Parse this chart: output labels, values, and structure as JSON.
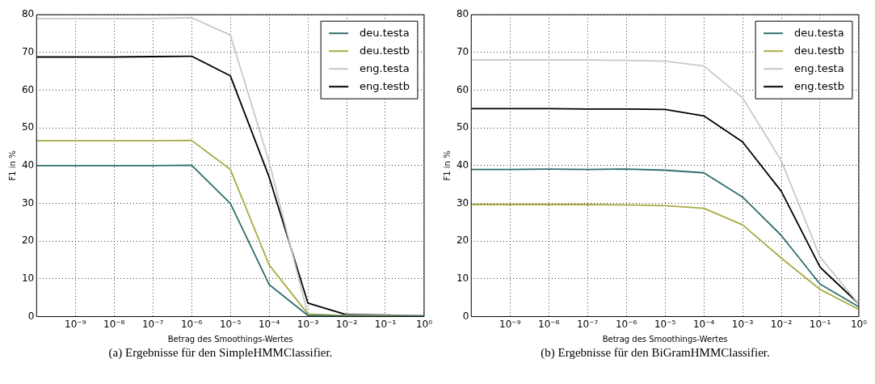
{
  "chart_data": [
    {
      "type": "line",
      "xlabel": "Betrag des Smoothings-Wertes",
      "ylabel": "F1 in %",
      "annotations": [
        "(a) Ergebnisse für den SimpleHMMClassifier."
      ],
      "log": "x",
      "grid": true,
      "legend": "top right",
      "xlim": [
        1e-10,
        1
      ],
      "ylim": [
        0,
        80
      ],
      "xticks": [
        {
          "value": 1e-09,
          "label": "10⁻⁹"
        },
        {
          "value": 1e-08,
          "label": "10⁻⁸"
        },
        {
          "value": 1e-07,
          "label": "10⁻⁷"
        },
        {
          "value": 1e-06,
          "label": "10⁻⁶"
        },
        {
          "value": 1e-05,
          "label": "10⁻⁵"
        },
        {
          "value": 0.0001,
          "label": "10⁻⁴"
        },
        {
          "value": 0.001,
          "label": "10⁻³"
        },
        {
          "value": 0.01,
          "label": "10⁻²"
        },
        {
          "value": 0.1,
          "label": "10⁻¹"
        },
        {
          "value": 1,
          "label": "10⁰"
        }
      ],
      "yticks": [
        0,
        10,
        20,
        30,
        40,
        50,
        60,
        70,
        80
      ],
      "x": [
        1e-10,
        1e-09,
        1e-08,
        1e-07,
        1e-06,
        1e-05,
        0.0001,
        0.001,
        0.01,
        0.1,
        1
      ],
      "series": [
        {
          "name": "deu.testa",
          "color": "#2f6e6e",
          "values": [
            40,
            40,
            40,
            40,
            40.1,
            30,
            8.5,
            0.3,
            0.1,
            0.1,
            0.1
          ]
        },
        {
          "name": "deu.testb",
          "color": "#a8ab45",
          "values": [
            46.6,
            46.6,
            46.6,
            46.6,
            46.7,
            39,
            13.7,
            0.7,
            0.2,
            0.2,
            0.1
          ]
        },
        {
          "name": "eng.testa",
          "color": "#c8c8c8",
          "values": [
            79,
            79,
            79,
            79,
            79.2,
            74.6,
            41,
            0.5,
            0.3,
            0.3,
            0.2
          ]
        },
        {
          "name": "eng.testb",
          "color": "#000000",
          "values": [
            68.8,
            68.8,
            68.8,
            68.9,
            69,
            63.8,
            37,
            3.6,
            0.5,
            0.4,
            0.2
          ]
        }
      ]
    },
    {
      "type": "line",
      "xlabel": "Betrag des Smoothings-Wertes",
      "ylabel": "F1 in %",
      "annotations": [
        "(b) Ergebnisse für den BiGramHMMClassifier."
      ],
      "log": "x",
      "grid": true,
      "legend": "top right",
      "xlim": [
        1e-10,
        1
      ],
      "ylim": [
        0,
        80
      ],
      "xticks": [
        {
          "value": 1e-09,
          "label": "10⁻⁹"
        },
        {
          "value": 1e-08,
          "label": "10⁻⁸"
        },
        {
          "value": 1e-07,
          "label": "10⁻⁷"
        },
        {
          "value": 1e-06,
          "label": "10⁻⁶"
        },
        {
          "value": 1e-05,
          "label": "10⁻⁵"
        },
        {
          "value": 0.0001,
          "label": "10⁻⁴"
        },
        {
          "value": 0.001,
          "label": "10⁻³"
        },
        {
          "value": 0.01,
          "label": "10⁻²"
        },
        {
          "value": 0.1,
          "label": "10⁻¹"
        },
        {
          "value": 1,
          "label": "10⁰"
        }
      ],
      "yticks": [
        0,
        10,
        20,
        30,
        40,
        50,
        60,
        70,
        80
      ],
      "x": [
        1e-10,
        1e-09,
        1e-08,
        1e-07,
        1e-06,
        1e-05,
        0.0001,
        0.001,
        0.01,
        0.1,
        1
      ],
      "series": [
        {
          "name": "deu.testa",
          "color": "#2f6e6e",
          "values": [
            39,
            39,
            39.1,
            39,
            39.1,
            38.8,
            38.1,
            31.7,
            21.5,
            8.6,
            2.6
          ]
        },
        {
          "name": "deu.testb",
          "color": "#a8ab45",
          "values": [
            29.7,
            29.7,
            29.7,
            29.7,
            29.6,
            29.4,
            28.7,
            24.3,
            15.5,
            7.2,
            1.9
          ]
        },
        {
          "name": "eng.testa",
          "color": "#c8c8c8",
          "values": [
            68,
            68,
            68,
            68,
            67.9,
            67.7,
            66.4,
            58,
            41.3,
            15.8,
            3.3
          ]
        },
        {
          "name": "eng.testb",
          "color": "#000000",
          "values": [
            55.1,
            55.1,
            55.1,
            55,
            55,
            54.9,
            53.2,
            46.3,
            33.2,
            13.1,
            3.4
          ]
        }
      ]
    }
  ]
}
